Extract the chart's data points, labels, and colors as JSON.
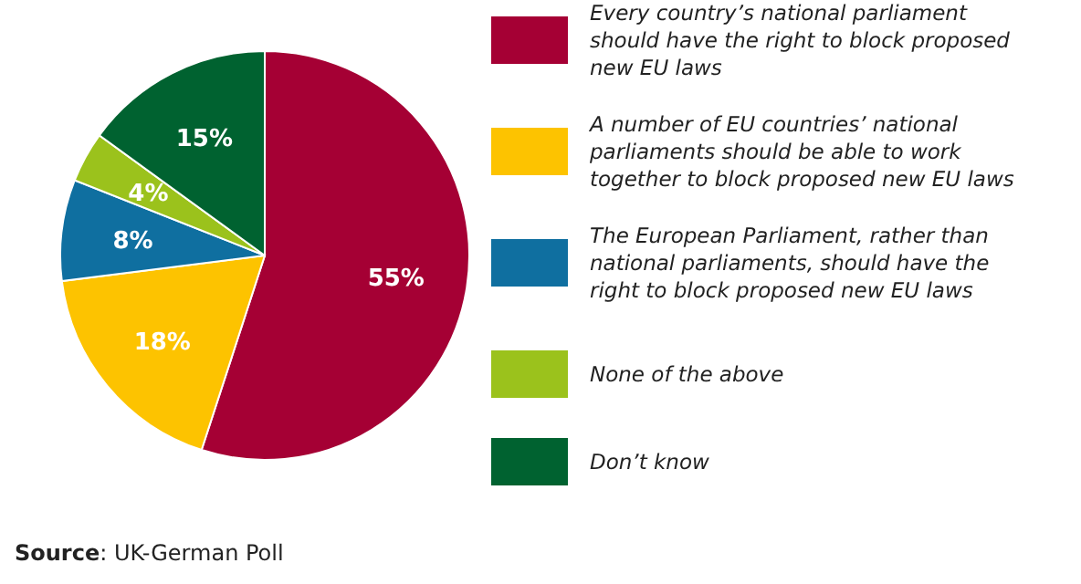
{
  "chart_data": {
    "type": "pie",
    "categories": [
      "Every country’s national parliament should have the right to block proposed new EU laws",
      "A number of EU countries’ national parliaments should be able to work together to block proposed new EU laws",
      "The European Parliament, rather than national parliaments, should have the right to block proposed new EU laws",
      "None of the above",
      "Don’t know"
    ],
    "values": [
      55,
      18,
      8,
      4,
      15
    ],
    "value_labels": [
      "55%",
      "18%",
      "8%",
      "4%",
      "15%"
    ],
    "colors": [
      "#a50034",
      "#fdc300",
      "#0f6fa0",
      "#9bc21c",
      "#006230"
    ],
    "legend": "right",
    "annotations": [
      "**Source**: UK-German Poll"
    ]
  }
}
